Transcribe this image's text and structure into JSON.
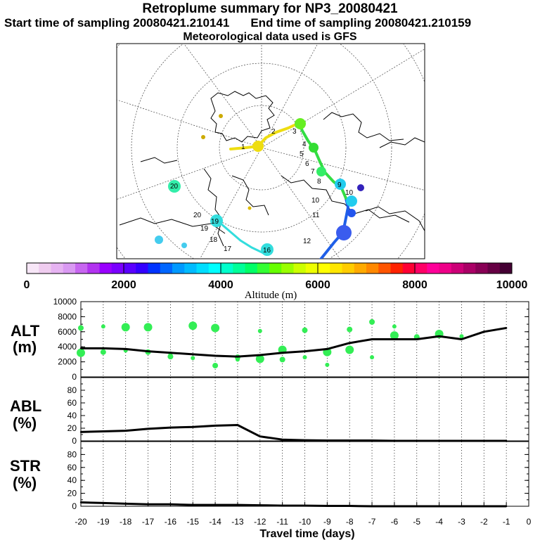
{
  "header": {
    "title": "Retroplume summary for NP3_20080421",
    "subtitle_start": "Start time of sampling 20080421.210141",
    "subtitle_end": "End time of sampling 20080421.210159",
    "met_data": "Meteorological data used is GFS"
  },
  "map": {
    "labels": [
      "1",
      "2",
      "3",
      "4",
      "5",
      "6",
      "7",
      "8",
      "9",
      "10",
      "10",
      "11",
      "12",
      "16",
      "17",
      "18",
      "19",
      "19",
      "20",
      "20"
    ]
  },
  "colorbar": {
    "xlabel": "Altitude (m)",
    "ticks": [
      "0",
      "2000",
      "4000",
      "6000",
      "8000",
      "10000"
    ],
    "colors": [
      "#f7e6f7",
      "#efccef",
      "#e6b3f2",
      "#d999f2",
      "#c766f0",
      "#b233f0",
      "#9900ff",
      "#7a00ff",
      "#5a00ff",
      "#3300ff",
      "#0033ff",
      "#0066ff",
      "#0099ff",
      "#00bbff",
      "#00ddff",
      "#00ffff",
      "#00ffcc",
      "#00ff99",
      "#00ff66",
      "#33ff33",
      "#66ff00",
      "#99ff00",
      "#ccff00",
      "#eeff00",
      "#ffff00",
      "#ffe600",
      "#ffcc00",
      "#ffaa00",
      "#ff8800",
      "#ff5500",
      "#ff2200",
      "#ff0033",
      "#ff0066",
      "#ff0099",
      "#ee0088",
      "#cc0077",
      "#aa0066",
      "#880055",
      "#660044",
      "#440033"
    ]
  },
  "panels": {
    "alt_label": [
      "ALT",
      "(m)"
    ],
    "abl_label": [
      "ABL",
      "(%)"
    ],
    "str_label": [
      "STR",
      "(%)"
    ]
  },
  "chart_data": [
    {
      "type": "line",
      "name": "ALT",
      "title": "Retroplume summary for NP3_20080421",
      "xlabel": "Travel time (days)",
      "ylabel": "ALT (m)",
      "xlim": [
        -20,
        0
      ],
      "ylim": [
        0,
        10000
      ],
      "yticks": [
        "0",
        "2000",
        "4000",
        "6000",
        "8000",
        "10000"
      ],
      "x": [
        -20,
        -19,
        -18,
        -17,
        -16,
        -15,
        -14,
        -13,
        -12,
        -11,
        -10,
        -9,
        -8,
        -7,
        -6,
        -5,
        -4,
        -3,
        -2,
        -1
      ],
      "values": [
        3800,
        3800,
        3700,
        3400,
        3200,
        3000,
        2800,
        2700,
        2900,
        3200,
        3400,
        3700,
        4500,
        5000,
        5000,
        5000,
        5400,
        5000,
        6000,
        6500
      ]
    },
    {
      "type": "line",
      "name": "ABL",
      "xlabel": "Travel time (days)",
      "ylabel": "ABL (%)",
      "xlim": [
        -20,
        0
      ],
      "ylim": [
        0,
        100
      ],
      "yticks": [
        "0",
        "20",
        "40",
        "60",
        "80"
      ],
      "x": [
        -20,
        -19,
        -18,
        -17,
        -16,
        -15,
        -14,
        -13,
        -12,
        -11,
        -10,
        -9,
        -8,
        -7,
        -6,
        -5,
        -4,
        -3,
        -2,
        -1
      ],
      "values": [
        14,
        15,
        16,
        19,
        21,
        22,
        24,
        25,
        7,
        2,
        1,
        0.5,
        0.5,
        0.5,
        0,
        0,
        0,
        0,
        0,
        0
      ]
    },
    {
      "type": "line",
      "name": "STR",
      "xlabel": "Travel time (days)",
      "ylabel": "STR (%)",
      "xlim": [
        -20,
        0
      ],
      "ylim": [
        0,
        100
      ],
      "yticks": [
        "0",
        "20",
        "40",
        "60",
        "80"
      ],
      "x": [
        -20,
        -19,
        -18,
        -17,
        -16,
        -15,
        -14,
        -13,
        -12,
        -11,
        -10,
        -9,
        -8,
        -7,
        -6,
        -5,
        -4,
        -3,
        -2,
        -1
      ],
      "values": [
        6,
        5,
        4,
        3,
        3,
        2,
        2,
        2,
        1.5,
        1,
        1,
        0.5,
        0.5,
        0,
        0,
        0,
        0,
        0,
        0,
        0
      ]
    }
  ],
  "xaxis": {
    "label": "Travel time (days)",
    "ticks": [
      "-20",
      "-19",
      "-18",
      "-17",
      "-16",
      "-15",
      "-14",
      "-13",
      "-12",
      "-11",
      "-10",
      "-9",
      "-8",
      "-7",
      "-6",
      "-5",
      "-4",
      "-3",
      "-2",
      "-1",
      "0"
    ]
  },
  "colors": {
    "line": "#000000",
    "dots": "#33ee55"
  }
}
